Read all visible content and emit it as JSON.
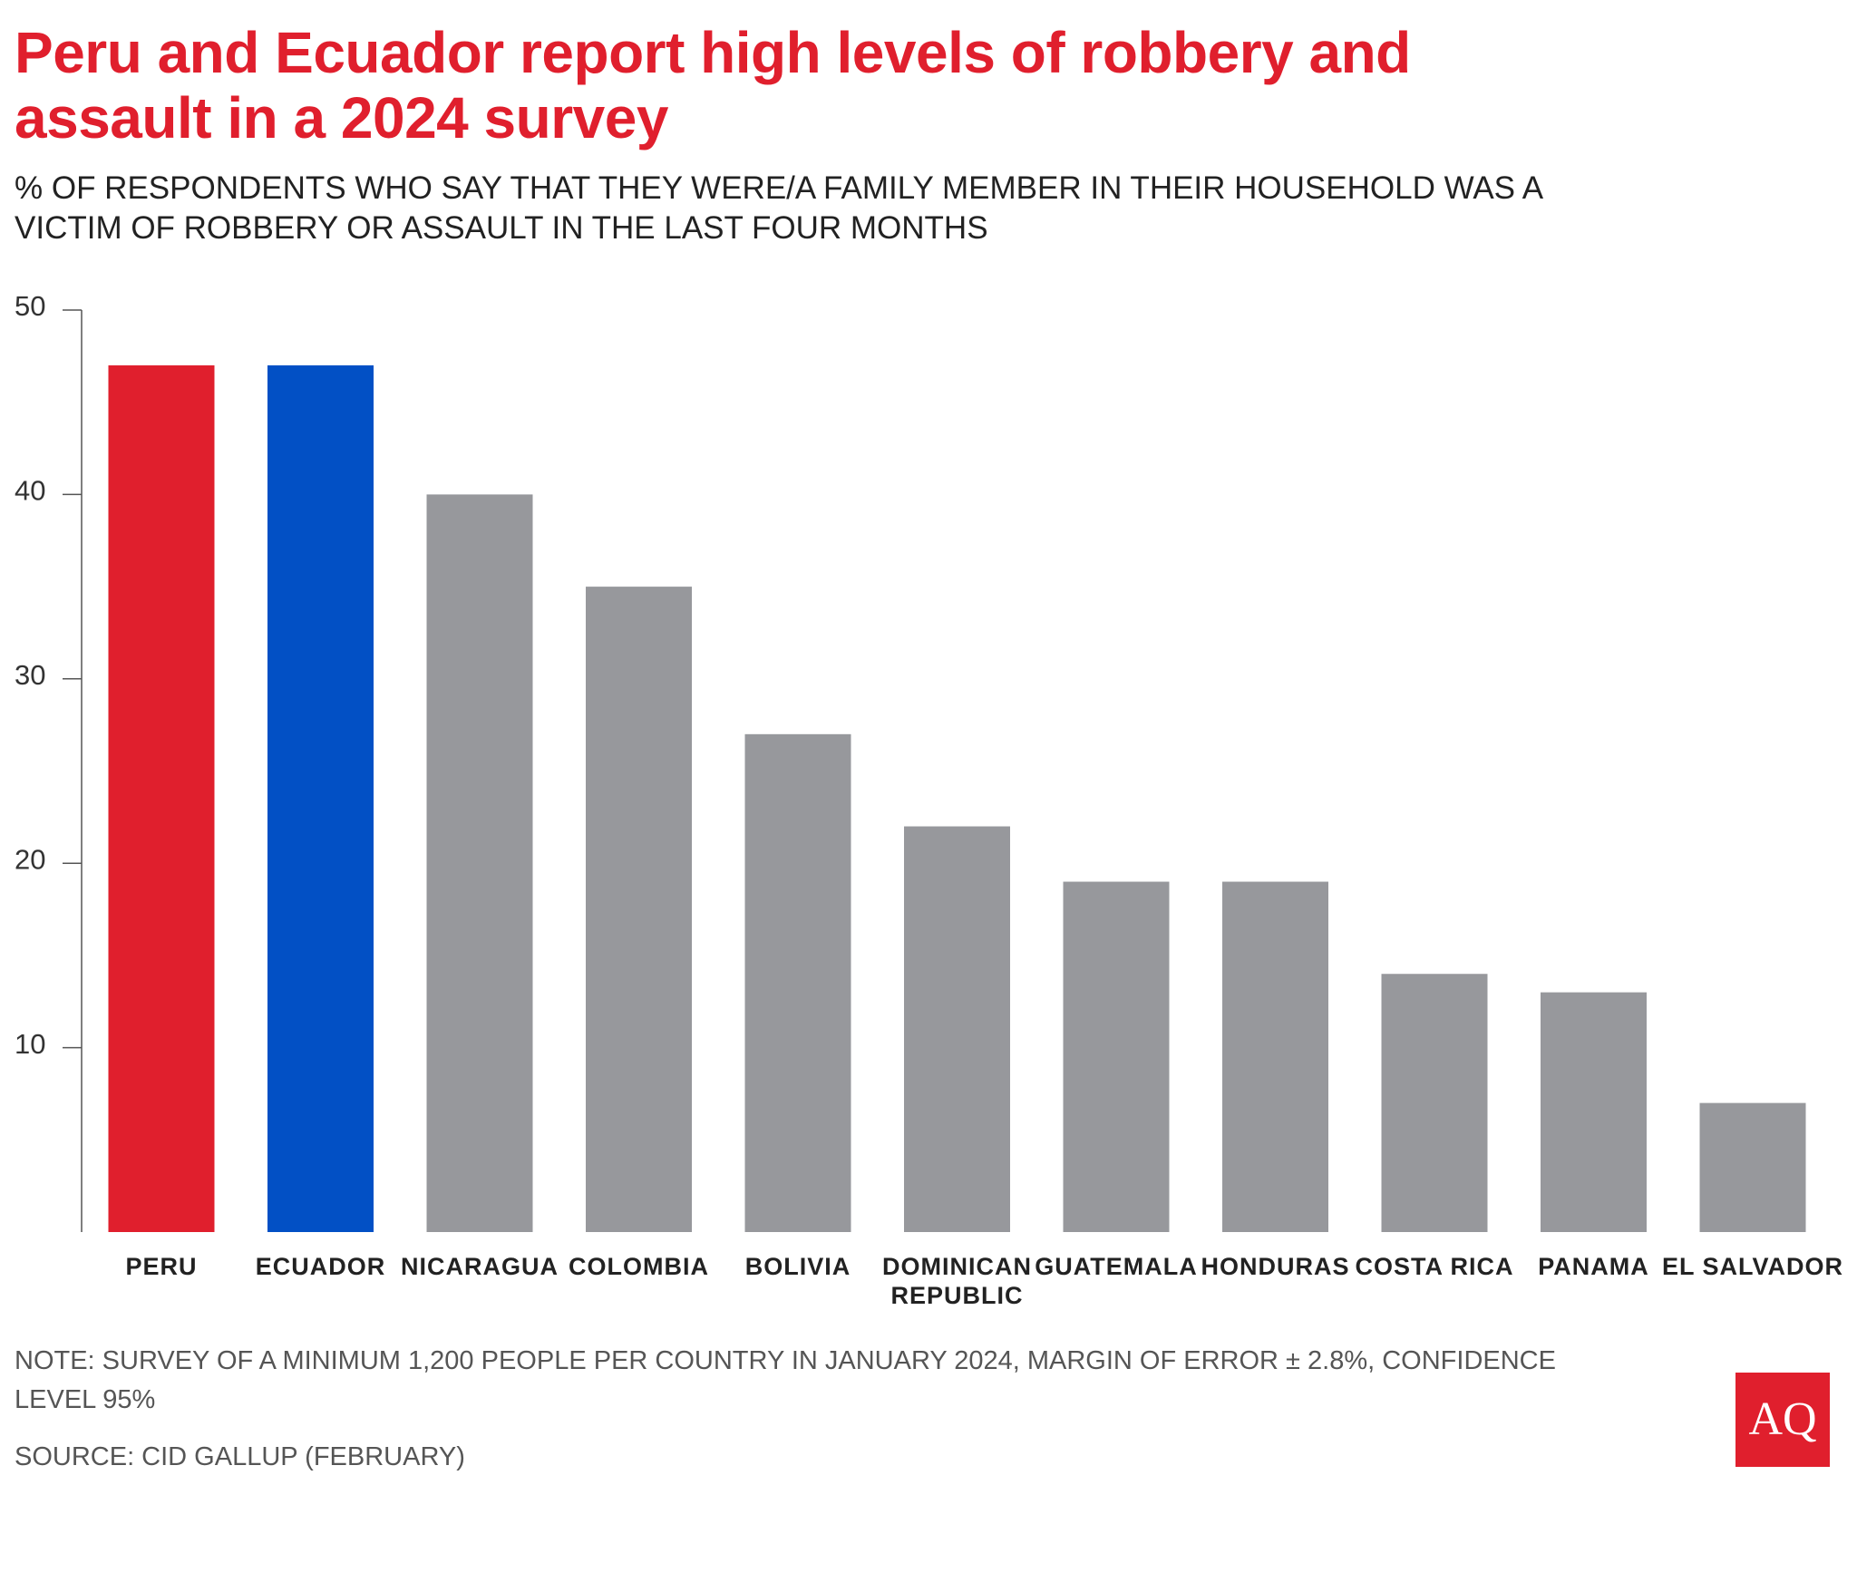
{
  "chart_data": {
    "type": "bar",
    "title": "Peru and Ecuador report high levels of robbery and assault in a 2024 survey",
    "subtitle": "% OF RESPONDENTS WHO SAY THAT THEY WERE/A FAMILY MEMBER IN THEIR HOUSEHOLD WAS A VICTIM OF ROBBERY OR ASSAULT IN THE LAST FOUR MONTHS",
    "categories": [
      "PERU",
      "ECUADOR",
      "NICARAGUA",
      "COLOMBIA",
      "BOLIVIA",
      "DOMINICAN REPUBLIC",
      "GUATEMALA",
      "HONDURAS",
      "COSTA RICA",
      "PANAMA",
      "EL SALVADOR"
    ],
    "values": [
      47,
      47,
      40,
      35,
      27,
      22,
      19,
      19,
      14,
      13,
      7
    ],
    "colors": [
      "#e01f2d",
      "#0250c5",
      "#97989c",
      "#97989c",
      "#97989c",
      "#97989c",
      "#97989c",
      "#97989c",
      "#97989c",
      "#97989c",
      "#97989c"
    ],
    "ylim": [
      0,
      50
    ],
    "yticks": [
      10,
      20,
      30,
      40,
      50
    ],
    "grid": false,
    "note": "NOTE: SURVEY OF A MINIMUM 1,200 PEOPLE PER COUNTRY IN JANUARY 2024, MARGIN OF ERROR ± 2.8%, CONFIDENCE LEVEL 95%",
    "source": "SOURCE: CID GALLUP (FEBRUARY)",
    "logo": "AQ"
  }
}
